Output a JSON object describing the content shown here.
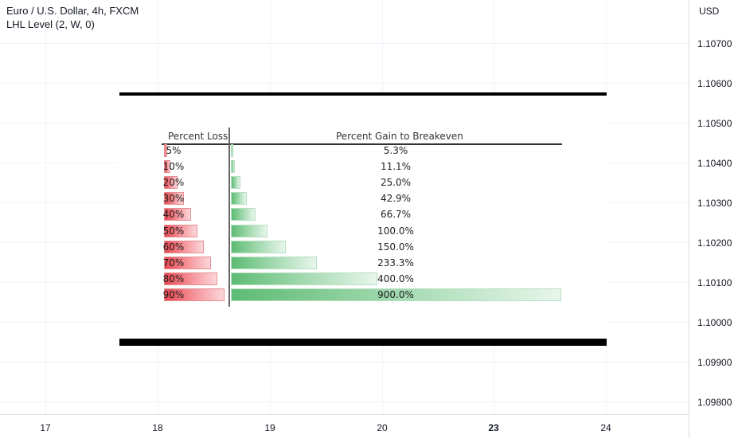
{
  "legend": {
    "symbol": "Euro / U.S. Dollar, 4h, FXCM",
    "indicator": "LHL Level (2, W, 0)"
  },
  "price_axis": {
    "currency": "USD",
    "labels": [
      "1.10700",
      "1.10600",
      "1.10500",
      "1.10400",
      "1.10300",
      "1.10200",
      "1.10100",
      "1.10000",
      "1.09900",
      "1.09800"
    ]
  },
  "time_axis": {
    "labels": [
      "17",
      "18",
      "19",
      "20",
      "23",
      "24"
    ],
    "bold_label": "23"
  },
  "colors": {
    "loss_bar": "#e8474f",
    "gain_bar": "#5dbb73",
    "axis_border": "#d9dbe0"
  },
  "chart_data": {
    "type": "table",
    "columns": [
      "Percent Loss",
      "Percent Gain to Breakeven"
    ],
    "rows": [
      {
        "loss": "5%",
        "gain": "5.3%",
        "loss_value": 5,
        "gain_value": 5.3
      },
      {
        "loss": "10%",
        "gain": "11.1%",
        "loss_value": 10,
        "gain_value": 11.1
      },
      {
        "loss": "20%",
        "gain": "25.0%",
        "loss_value": 20,
        "gain_value": 25.0
      },
      {
        "loss": "30%",
        "gain": "42.9%",
        "loss_value": 30,
        "gain_value": 42.9
      },
      {
        "loss": "40%",
        "gain": "66.7%",
        "loss_value": 40,
        "gain_value": 66.7
      },
      {
        "loss": "50%",
        "gain": "100.0%",
        "loss_value": 50,
        "gain_value": 100.0
      },
      {
        "loss": "60%",
        "gain": "150.0%",
        "loss_value": 60,
        "gain_value": 150.0
      },
      {
        "loss": "70%",
        "gain": "233.3%",
        "loss_value": 70,
        "gain_value": 233.3
      },
      {
        "loss": "80%",
        "gain": "400.0%",
        "loss_value": 80,
        "gain_value": 400.0
      },
      {
        "loss": "90%",
        "gain": "900.0%",
        "loss_value": 90,
        "gain_value": 900.0
      }
    ]
  }
}
